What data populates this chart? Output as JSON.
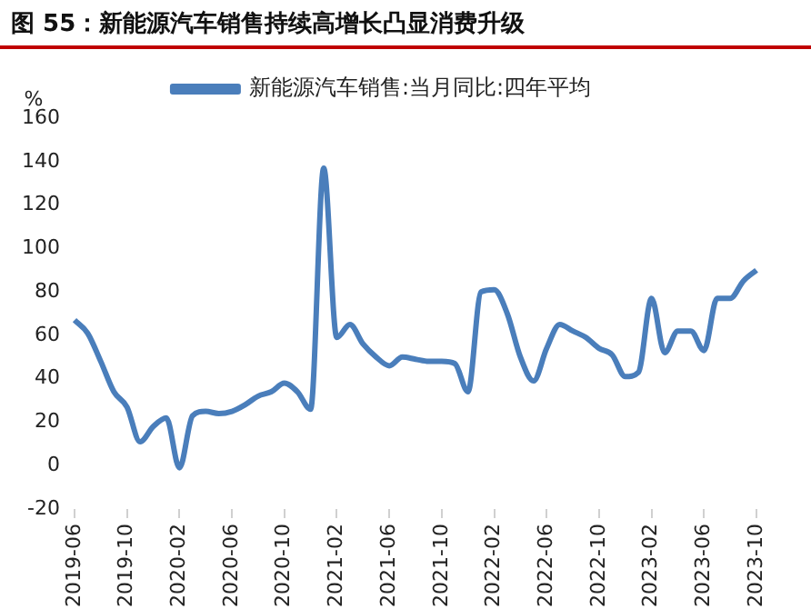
{
  "chart_data": {
    "type": "line",
    "title": "图 55：新能源汽车销售持续高增长凸显消费升级",
    "ylabel": "%",
    "categories": [
      "2019-06",
      null,
      null,
      null,
      "2019-10",
      null,
      null,
      null,
      "2020-02",
      null,
      null,
      null,
      "2020-06",
      null,
      null,
      null,
      "2020-10",
      null,
      null,
      null,
      "2021-02",
      null,
      null,
      null,
      "2021-06",
      null,
      null,
      null,
      "2021-10",
      null,
      null,
      null,
      "2022-02",
      null,
      null,
      null,
      "2022-06",
      null,
      null,
      null,
      "2022-10",
      null,
      null,
      null,
      "2023-02",
      null,
      null,
      null,
      "2023-06",
      null,
      null,
      null,
      "2023-10"
    ],
    "series": [
      {
        "name": "新能源汽车销售:当月同比:四年平均",
        "color": "#4a7ebb",
        "values": [
          67,
          61,
          48,
          34,
          27,
          11,
          18,
          22,
          -1,
          23,
          25,
          24,
          25,
          28,
          32,
          34,
          38,
          34,
          26,
          137,
          59,
          65,
          56,
          50,
          46,
          50,
          49,
          48,
          48,
          47,
          34,
          80,
          81,
          70,
          50,
          39,
          54,
          65,
          62,
          59,
          54,
          51,
          41,
          43,
          77,
          52,
          62,
          62,
          53,
          77,
          77,
          85,
          90
        ]
      }
    ],
    "ylim": [
      -20,
      160
    ],
    "yticks": [
      -20,
      0,
      20,
      40,
      60,
      80,
      100,
      120,
      140,
      160
    ],
    "grid": false,
    "legend": "top",
    "marker": "none",
    "line_style": "solid"
  }
}
